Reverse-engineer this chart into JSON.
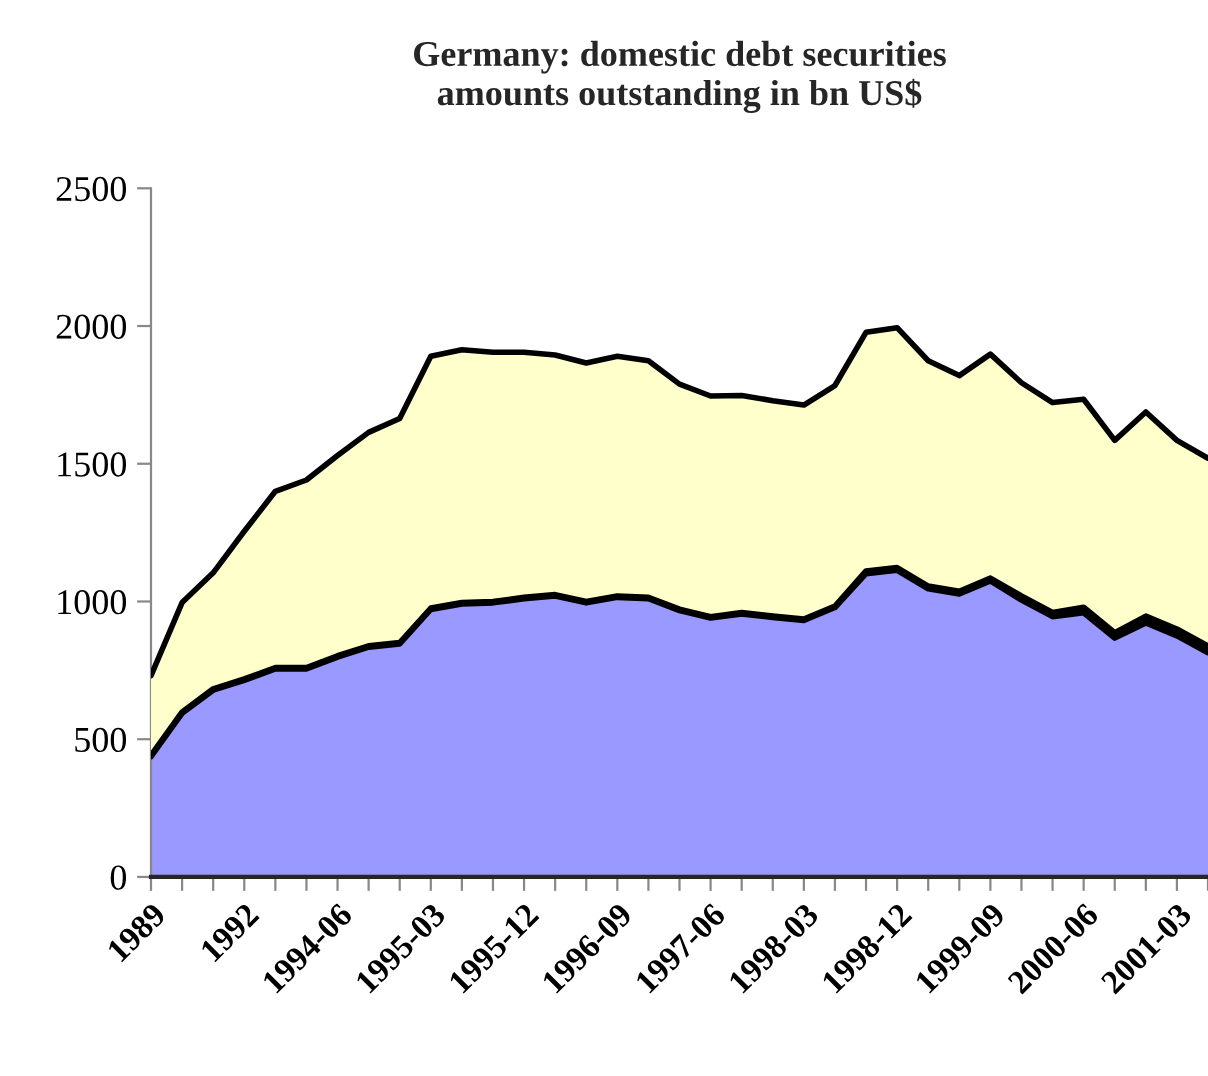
{
  "chart_data": {
    "type": "area",
    "stacked": true,
    "title": "Germany: domestic debt securities\namounts outstanding in bn US$",
    "categories": [
      "1989",
      null,
      null,
      "1992",
      null,
      null,
      "1994-06",
      null,
      null,
      "1995-03",
      null,
      null,
      "1995-12",
      null,
      null,
      "1996-09",
      null,
      null,
      "1997-06",
      null,
      null,
      "1998-03",
      null,
      null,
      "1998-12",
      null,
      null,
      "1999-09",
      null,
      null,
      "2000-06",
      null,
      null,
      "2001-03",
      null
    ],
    "series": [
      {
        "color": "#9999ff",
        "values": [
          437,
          594,
          678,
          714,
          755,
          755,
          798,
          834,
          846,
          971,
          991,
          995,
          1010,
          1020,
          995,
          1015,
          1010,
          967,
          940,
          955,
          942,
          931,
          978,
          1101,
          1113,
          1046,
          1027,
          1075,
          1005,
          945,
          959,
          867,
          922,
          875,
          814
        ]
      },
      {
        "color": "#000000",
        "values": [
          5,
          5,
          5,
          5,
          5,
          5,
          5,
          5,
          5,
          5,
          5,
          5,
          5,
          5,
          5,
          5,
          5,
          5,
          5,
          5,
          5,
          5,
          5,
          10,
          10,
          10,
          10,
          10,
          15,
          15,
          20,
          20,
          25,
          25,
          25
        ]
      },
      {
        "color": "#ffffcc",
        "values": [
          289,
          397,
          421,
          536,
          640,
          681,
          727,
          775,
          813,
          914,
          918,
          905,
          890,
          870,
          866,
          870,
          859,
          817,
          801,
          788,
          782,
          777,
          801,
          866,
          871,
          818,
          783,
          813,
          774,
          762,
          755,
          698,
          741,
          685,
          681
        ]
      }
    ],
    "ylim": [
      0,
      2500
    ],
    "yticks": [
      0,
      500,
      1000,
      1500,
      2000,
      2500
    ],
    "grid": false,
    "legend": false
  }
}
